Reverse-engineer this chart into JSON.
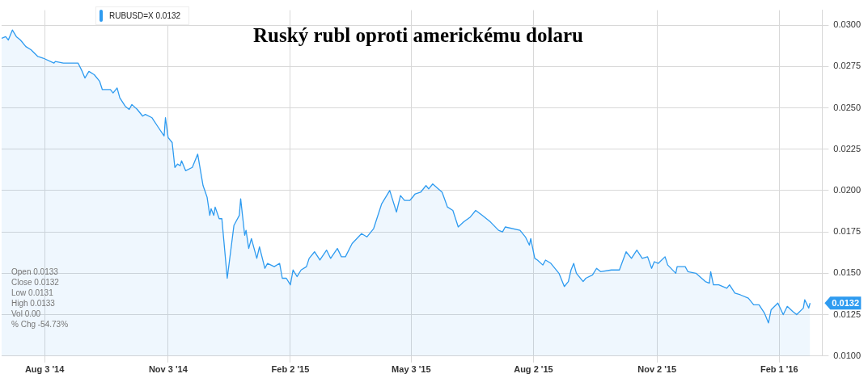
{
  "chart_data": {
    "type": "area",
    "title": "Ruský rubl oproti americkému dolaru",
    "x": [
      "2014-07-02",
      "2014-07-05",
      "2014-07-07",
      "2014-07-10",
      "2014-07-13",
      "2014-07-16",
      "2014-07-20",
      "2014-07-24",
      "2014-07-29",
      "2014-08-02",
      "2014-08-10",
      "2014-08-11",
      "2014-08-17",
      "2014-08-23",
      "2014-08-28",
      "2014-08-31",
      "2014-09-02",
      "2014-09-05",
      "2014-09-09",
      "2014-09-13",
      "2014-09-15",
      "2014-09-21",
      "2014-09-23",
      "2014-09-26",
      "2014-09-28",
      "2014-10-02",
      "2014-10-05",
      "2014-10-07",
      "2014-10-11",
      "2014-10-15",
      "2014-10-17",
      "2014-10-22",
      "2014-10-26",
      "2014-10-31",
      "2014-11-01",
      "2014-11-03",
      "2014-11-06",
      "2014-11-08",
      "2014-11-10",
      "2014-11-12",
      "2014-11-13",
      "2014-11-16",
      "2014-11-21",
      "2014-11-25",
      "2014-11-29",
      "2014-12-02",
      "2014-12-04",
      "2014-12-05",
      "2014-12-07",
      "2014-12-08",
      "2014-12-11",
      "2014-12-13",
      "2014-12-17",
      "2014-12-22",
      "2014-12-26",
      "2014-12-27",
      "2014-12-30",
      "2014-12-31",
      "2015-01-02",
      "2015-01-04",
      "2015-01-08",
      "2015-01-10",
      "2015-01-14",
      "2015-01-16",
      "2015-01-21",
      "2015-01-25",
      "2015-01-27",
      "2015-01-30",
      "2015-02-02",
      "2015-02-04",
      "2015-02-07",
      "2015-02-10",
      "2015-02-14",
      "2015-02-16",
      "2015-02-20",
      "2015-02-24",
      "2015-03-01",
      "2015-03-04",
      "2015-03-09",
      "2015-03-12",
      "2015-03-15",
      "2015-03-20",
      "2015-03-27",
      "2015-03-31",
      "2015-04-05",
      "2015-04-11",
      "2015-04-17",
      "2015-04-22",
      "2015-04-25",
      "2015-04-28",
      "2015-05-02",
      "2015-05-06",
      "2015-05-10",
      "2015-05-14",
      "2015-05-16",
      "2015-05-19",
      "2015-05-26",
      "2015-05-30",
      "2015-06-03",
      "2015-06-07",
      "2015-06-11",
      "2015-06-16",
      "2015-06-20",
      "2015-06-25",
      "2015-07-01",
      "2015-07-07",
      "2015-07-10",
      "2015-07-12",
      "2015-07-23",
      "2015-07-27",
      "2015-07-30",
      "2015-07-31",
      "2015-08-03",
      "2015-08-05",
      "2015-08-09",
      "2015-08-11",
      "2015-08-15",
      "2015-08-21",
      "2015-08-25",
      "2015-08-28",
      "2015-08-30",
      "2015-09-01",
      "2015-09-03",
      "2015-09-08",
      "2015-09-10",
      "2015-09-15",
      "2015-09-18",
      "2015-09-21",
      "2015-09-29",
      "2015-10-05",
      "2015-10-10",
      "2015-10-14",
      "2015-10-18",
      "2015-10-22",
      "2015-10-26",
      "2015-10-29",
      "2015-10-31",
      "2015-11-03",
      "2015-11-08",
      "2015-11-10",
      "2015-11-16",
      "2015-11-17",
      "2015-11-23",
      "2015-11-25",
      "2015-12-01",
      "2015-12-08",
      "2015-12-11",
      "2015-12-12",
      "2015-12-14",
      "2015-12-18",
      "2015-12-24",
      "2015-12-26",
      "2015-12-30",
      "2016-01-03",
      "2016-01-09",
      "2016-01-13",
      "2016-01-17",
      "2016-01-21",
      "2016-01-24",
      "2016-01-26",
      "2016-01-31",
      "2016-02-04",
      "2016-02-07",
      "2016-02-11",
      "2016-02-14",
      "2016-02-19",
      "2016-02-20",
      "2016-02-23",
      "2016-02-24"
    ],
    "series": [
      {
        "name": "RUBUSD=X 0.0132",
        "color": "#2e9bf0",
        "values": [
          0.0292,
          0.0293,
          0.0291,
          0.0297,
          0.0293,
          0.0291,
          0.0287,
          0.0285,
          0.0281,
          0.028,
          0.0277,
          0.0278,
          0.0277,
          0.0277,
          0.0277,
          0.0272,
          0.0268,
          0.0272,
          0.027,
          0.0266,
          0.0261,
          0.0261,
          0.0259,
          0.0262,
          0.0256,
          0.0251,
          0.0249,
          0.0252,
          0.0249,
          0.0245,
          0.0246,
          0.0244,
          0.0239,
          0.0233,
          0.0244,
          0.0232,
          0.0229,
          0.0214,
          0.0216,
          0.0215,
          0.0218,
          0.0212,
          0.0214,
          0.0222,
          0.0203,
          0.0196,
          0.0185,
          0.0189,
          0.0185,
          0.019,
          0.0183,
          0.0183,
          0.0147,
          0.0179,
          0.0185,
          0.0195,
          0.0173,
          0.0176,
          0.0165,
          0.0171,
          0.0159,
          0.0166,
          0.0153,
          0.0156,
          0.0154,
          0.0156,
          0.0147,
          0.0147,
          0.0143,
          0.0152,
          0.0148,
          0.0152,
          0.0154,
          0.0159,
          0.0163,
          0.0158,
          0.0164,
          0.0159,
          0.0165,
          0.016,
          0.016,
          0.0168,
          0.0174,
          0.0172,
          0.0177,
          0.0192,
          0.02,
          0.0187,
          0.0197,
          0.0194,
          0.0194,
          0.0198,
          0.0199,
          0.0203,
          0.0201,
          0.0204,
          0.0199,
          0.019,
          0.0188,
          0.0178,
          0.0181,
          0.0184,
          0.0188,
          0.0185,
          0.0181,
          0.0176,
          0.0175,
          0.0178,
          0.0176,
          0.0172,
          0.0167,
          0.0171,
          0.0159,
          0.0158,
          0.0155,
          0.0158,
          0.0156,
          0.015,
          0.0142,
          0.0145,
          0.0152,
          0.0156,
          0.015,
          0.0145,
          0.0147,
          0.0149,
          0.0153,
          0.0151,
          0.0152,
          0.0152,
          0.0163,
          0.0159,
          0.0164,
          0.0159,
          0.016,
          0.0153,
          0.0157,
          0.0156,
          0.016,
          0.0155,
          0.015,
          0.0154,
          0.0154,
          0.0151,
          0.015,
          0.0145,
          0.0144,
          0.0151,
          0.0143,
          0.0143,
          0.0141,
          0.0143,
          0.0138,
          0.0137,
          0.0135,
          0.0131,
          0.0131,
          0.0126,
          0.012,
          0.0128,
          0.0132,
          0.0125,
          0.013,
          0.0127,
          0.0125,
          0.0129,
          0.0134,
          0.0129,
          0.0132
        ]
      }
    ],
    "xlim": [
      "2014-07-02",
      "2016-03-04"
    ],
    "xticks": [
      {
        "value": "2014-08-03",
        "label": "Aug 3 '14"
      },
      {
        "value": "2014-11-03",
        "label": "Nov 3 '14"
      },
      {
        "value": "2015-02-02",
        "label": "Feb 2 '15"
      },
      {
        "value": "2015-05-03",
        "label": "May 3 '15"
      },
      {
        "value": "2015-08-02",
        "label": "Aug 2 '15"
      },
      {
        "value": "2015-11-02",
        "label": "Nov 2 '15"
      },
      {
        "value": "2016-02-01",
        "label": "Feb 1 '16"
      }
    ],
    "ylim": [
      0.01,
      0.0309
    ],
    "yticks": [
      {
        "value": 0.01,
        "label": "0.0100"
      },
      {
        "value": 0.0125,
        "label": "0.0125"
      },
      {
        "value": 0.015,
        "label": "0.0150"
      },
      {
        "value": 0.0175,
        "label": "0.0175"
      },
      {
        "value": 0.02,
        "label": "0.0200"
      },
      {
        "value": 0.0225,
        "label": "0.0225"
      },
      {
        "value": 0.025,
        "label": "0.0250"
      },
      {
        "value": 0.0275,
        "label": "0.0275"
      },
      {
        "value": 0.03,
        "label": "0.0300"
      }
    ],
    "grid": true,
    "legend": "top left",
    "annotations": [
      "Open 0.0133",
      "Close 0.0132",
      "Low 0.0131",
      "High 0.0133",
      "Vol 0.00",
      "% Chg -54.73%",
      {
        "text": "0.0132",
        "x": "2016-02-24",
        "y": 0.0132
      }
    ]
  }
}
